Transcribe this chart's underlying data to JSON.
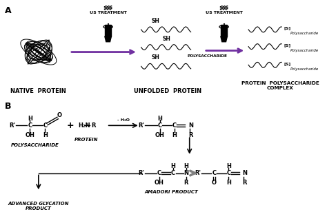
{
  "bg_color": "#ffffff",
  "panel_A_label": "A",
  "panel_B_label": "B",
  "native_protein_label": "NATIVE  PROTEIN",
  "unfolded_protein_label": "UNFOLDED  PROTEIN",
  "protein_polysaccharide_label": "PROTEIN  POLYSACCHARIDE\nCOMPLEX",
  "polysaccharide_label_B": "POLYSACCHARIDE",
  "protein_label_B": "PROTEIN",
  "advanced_glycation_label": "ADVANCED GLYCATION\nPRODUCT",
  "amadori_label": "AMADORI PRODUCT",
  "us_treatment": "US TREATMENT",
  "arrow_color_purple": "#7030A0",
  "line_color": "#000000",
  "font_size_small": 5,
  "font_size_medium": 6,
  "font_size_label": 6.5,
  "font_size_bold": 6
}
